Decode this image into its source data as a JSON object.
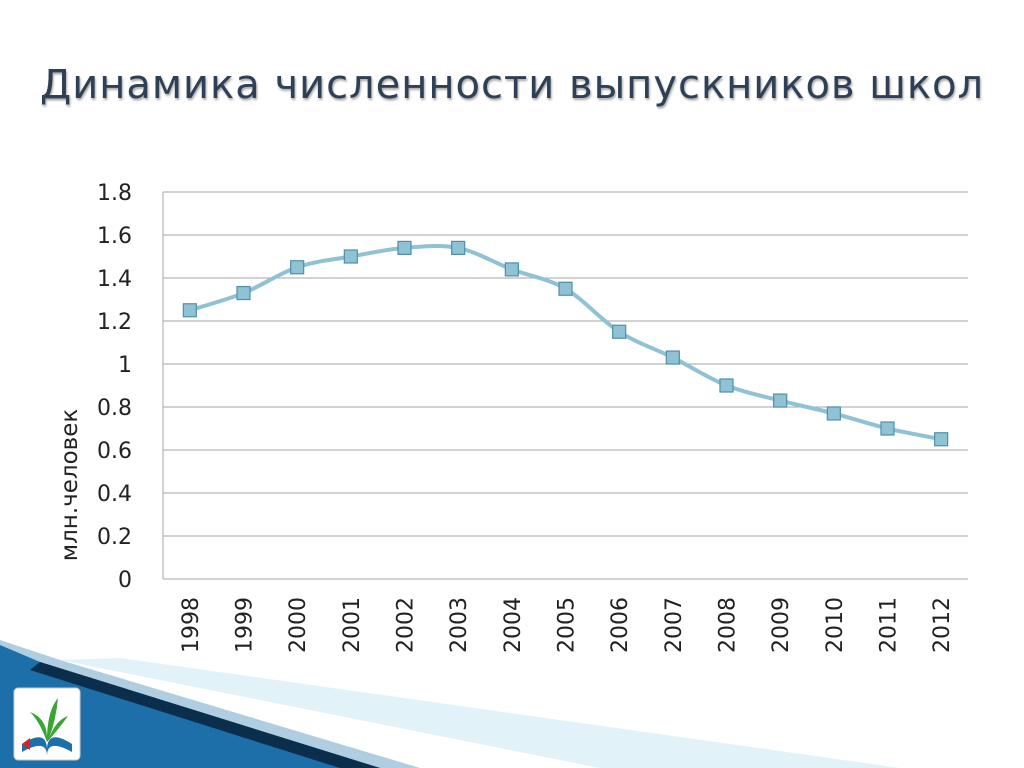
{
  "slide": {
    "title": "Динамика численности выпускников школ"
  },
  "chart_data": {
    "type": "line",
    "title": "",
    "xlabel": "",
    "ylabel": "млн.человек",
    "x": [
      "1998",
      "1999",
      "2000",
      "2001",
      "2002",
      "2003",
      "2004",
      "2005",
      "2006",
      "2007",
      "2008",
      "2009",
      "2010",
      "2011",
      "2012"
    ],
    "series": [
      {
        "values": [
          1.25,
          1.33,
          1.45,
          1.5,
          1.54,
          1.54,
          1.44,
          1.35,
          1.15,
          1.03,
          0.9,
          0.83,
          0.77,
          0.7,
          0.65
        ]
      }
    ],
    "ylim": [
      0,
      1.8
    ],
    "yticks": [
      "0",
      "0.2",
      "0.4",
      "0.6",
      "0.8",
      "1",
      "1.2",
      "1.4",
      "1.6",
      "1.8"
    ],
    "grid": true,
    "legend": "none",
    "colors": {
      "line": "#8fc2d4",
      "marker_fill": "#8fc2d4",
      "marker_stroke": "#4f8fa8",
      "grid": "#a6a6a6",
      "title": "#2f3f56"
    }
  },
  "decor": {
    "logo_icon": "union-logo-icon",
    "wave_colors": [
      "#1c6fa8",
      "#0b4a7a",
      "#5fb6dc"
    ]
  }
}
